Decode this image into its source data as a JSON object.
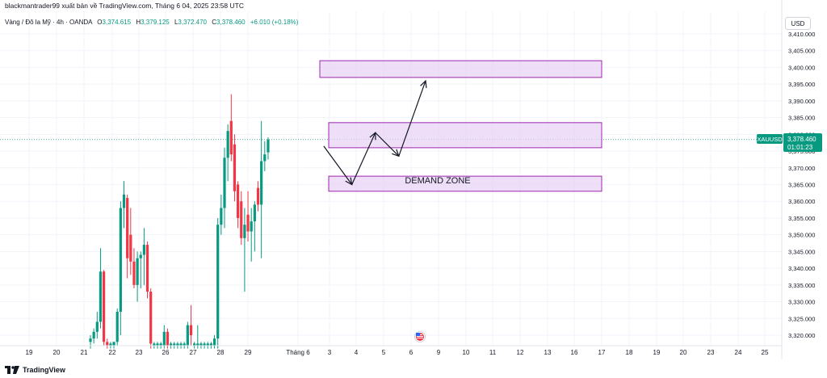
{
  "header": {
    "publisher": "blackmantrader99 xuất bản về TradingView.com, Tháng 6 04, 2025 23:58 UTC",
    "symbol_desc": "Vàng / Đô la Mỹ · 4h · OANDA",
    "o_label": "O",
    "o_value": "3,374.615",
    "h_label": "H",
    "h_value": "3,379.125",
    "l_label": "L",
    "l_value": "3,372.470",
    "c_label": "C",
    "c_value": "3,378.460",
    "change": "+6.010 (+0.18%)"
  },
  "price_axis": {
    "currency": "USD"
  },
  "price_tag": {
    "symbol": "XAUUSD",
    "price": "3,378.460",
    "countdown": "01:01:23"
  },
  "annotation": {
    "demand_zone": "DEMAND ZONE"
  },
  "footer": {
    "brand": "TradingView"
  },
  "colors": {
    "up": "#089981",
    "down": "#f23645",
    "zone_fill": "#e9d3f5",
    "zone_border": "#9c27b0",
    "price_tag": "#089981"
  },
  "chart_data": {
    "type": "candlestick",
    "x_tick_labels": [
      "19",
      "20",
      "21",
      "22",
      "23",
      "26",
      "27",
      "28",
      "29",
      "Tháng 6",
      "3",
      "4",
      "5",
      "6",
      "9",
      "10",
      "11",
      "12",
      "13",
      "16",
      "17",
      "18",
      "19",
      "20",
      "23",
      "24",
      "25"
    ],
    "y_tick_labels": [
      "3,410.000",
      "3,405.000",
      "3,400.000",
      "3,395.000",
      "3,390.000",
      "3,385.000",
      "3,380.000",
      "3,375.000",
      "3,370.000",
      "3,365.000",
      "3,360.000",
      "3,355.000",
      "3,350.000",
      "3,345.000",
      "3,340.000",
      "3,335.000",
      "3,330.000",
      "3,325.000",
      "3,320.000"
    ],
    "ylim": [
      3317,
      3411
    ],
    "last_price": 3378.46,
    "zones": [
      {
        "from": 3397,
        "to": 3402
      },
      {
        "from": 3376,
        "to": 3383.5
      },
      {
        "from": 3363,
        "to": 3367.5
      }
    ],
    "arrow_path_prices": [
      {
        "slot": 69.6,
        "price": 3376.5
      },
      {
        "slot": 78,
        "price": 3365
      },
      {
        "slot": 85,
        "price": 3380.5
      },
      {
        "slot": 92,
        "price": 3373.5
      },
      {
        "slot": 100,
        "price": 3396
      }
    ],
    "candles": [
      {
        "o": 3318.0,
        "h": 3320.0,
        "l": 3316.0,
        "c": 3319.0
      },
      {
        "o": 3319.0,
        "h": 3322.0,
        "l": 3317.5,
        "c": 3321.0
      },
      {
        "o": 3321.0,
        "h": 3327.0,
        "l": 3319.0,
        "c": 3324.0
      },
      {
        "o": 3324.0,
        "h": 3346.0,
        "l": 3322.0,
        "c": 3339.0
      },
      {
        "o": 3339.0,
        "h": 3339.5,
        "l": 3317.0,
        "c": 3318.0
      },
      {
        "o": 3318.0,
        "h": 3319.0,
        "l": 3316.0,
        "c": 3317.0
      },
      {
        "o": 3317.0,
        "h": 3318.0,
        "l": 3316.0,
        "c": 3317.5
      },
      {
        "o": 3317.0,
        "h": 3318.0,
        "l": 3316.0,
        "c": 3318.0
      },
      {
        "o": 3318.0,
        "h": 3328.0,
        "l": 3317.0,
        "c": 3327.0
      },
      {
        "o": 3327.0,
        "h": 3360.0,
        "l": 3320.0,
        "c": 3358.0
      },
      {
        "o": 3358.0,
        "h": 3366.0,
        "l": 3352.0,
        "c": 3362.0
      },
      {
        "o": 3361.0,
        "h": 3362.0,
        "l": 3337.0,
        "c": 3343.0
      },
      {
        "o": 3350.0,
        "h": 3358.0,
        "l": 3338.0,
        "c": 3342.0
      },
      {
        "o": 3342.0,
        "h": 3346.0,
        "l": 3334.0,
        "c": 3335.0
      },
      {
        "o": 3335.0,
        "h": 3345.0,
        "l": 3330.0,
        "c": 3343.0
      },
      {
        "o": 3343.0,
        "h": 3345.0,
        "l": 3334.0,
        "c": 3344.0
      },
      {
        "o": 3344.0,
        "h": 3352.0,
        "l": 3335.0,
        "c": 3347.0
      },
      {
        "o": 3347.0,
        "h": 3348.0,
        "l": 3331.0,
        "c": 3333.0
      },
      {
        "o": 3333.0,
        "h": 3334.0,
        "l": 3316.0,
        "c": 3317.5
      },
      {
        "o": 3317.0,
        "h": 3318.0,
        "l": 3316.0,
        "c": 3317.5
      },
      {
        "o": 3317.0,
        "h": 3318.0,
        "l": 3316.0,
        "c": 3317.5
      },
      {
        "o": 3317.0,
        "h": 3318.0,
        "l": 3316.0,
        "c": 3317.5
      },
      {
        "o": 3317.0,
        "h": 3323.0,
        "l": 3316.0,
        "c": 3321.0
      },
      {
        "o": 3321.0,
        "h": 3322.0,
        "l": 3316.0,
        "c": 3317.0
      },
      {
        "o": 3317.0,
        "h": 3318.0,
        "l": 3316.0,
        "c": 3317.5
      },
      {
        "o": 3317.0,
        "h": 3318.0,
        "l": 3316.0,
        "c": 3317.5
      },
      {
        "o": 3317.0,
        "h": 3318.0,
        "l": 3316.0,
        "c": 3317.5
      },
      {
        "o": 3317.0,
        "h": 3318.0,
        "l": 3316.0,
        "c": 3317.5
      },
      {
        "o": 3317.0,
        "h": 3318.0,
        "l": 3316.0,
        "c": 3317.5
      },
      {
        "o": 3317.0,
        "h": 3324.0,
        "l": 3316.0,
        "c": 3323.0
      },
      {
        "o": 3323.0,
        "h": 3329.0,
        "l": 3317.0,
        "c": 3320.0
      },
      {
        "o": 3317.0,
        "h": 3318.0,
        "l": 3316.0,
        "c": 3317.5
      },
      {
        "o": 3317.0,
        "h": 3323.0,
        "l": 3316.0,
        "c": 3317.5
      },
      {
        "o": 3317.0,
        "h": 3318.0,
        "l": 3316.0,
        "c": 3317.5
      },
      {
        "o": 3317.0,
        "h": 3318.0,
        "l": 3316.0,
        "c": 3317.5
      },
      {
        "o": 3317.0,
        "h": 3318.0,
        "l": 3316.0,
        "c": 3317.5
      },
      {
        "o": 3317.0,
        "h": 3318.0,
        "l": 3316.0,
        "c": 3317.5
      },
      {
        "o": 3317.0,
        "h": 3320.0,
        "l": 3316.0,
        "c": 3319.0
      },
      {
        "o": 3319.0,
        "h": 3355.0,
        "l": 3316.0,
        "c": 3353.0
      },
      {
        "o": 3353.0,
        "h": 3362.0,
        "l": 3350.0,
        "c": 3358.0
      },
      {
        "o": 3358.0,
        "h": 3376.0,
        "l": 3352.0,
        "c": 3373.0
      },
      {
        "o": 3373.0,
        "h": 3383.0,
        "l": 3366.0,
        "c": 3381.0
      },
      {
        "o": 3384.0,
        "h": 3392.0,
        "l": 3372.0,
        "c": 3374.0
      },
      {
        "o": 3377.0,
        "h": 3380.0,
        "l": 3360.0,
        "c": 3363.0
      },
      {
        "o": 3365.0,
        "h": 3366.0,
        "l": 3352.0,
        "c": 3355.0
      },
      {
        "o": 3360.0,
        "h": 3363.0,
        "l": 3347.0,
        "c": 3349.0
      },
      {
        "o": 3349.0,
        "h": 3358.0,
        "l": 3333.0,
        "c": 3353.0
      },
      {
        "o": 3356.0,
        "h": 3363.0,
        "l": 3348.0,
        "c": 3351.0
      },
      {
        "o": 3351.0,
        "h": 3358.0,
        "l": 3342.0,
        "c": 3354.0
      },
      {
        "o": 3354.0,
        "h": 3360.0,
        "l": 3345.0,
        "c": 3359.0
      },
      {
        "o": 3364.0,
        "h": 3366.0,
        "l": 3357.0,
        "c": 3359.0
      },
      {
        "o": 3359.0,
        "h": 3384.0,
        "l": 3343.0,
        "c": 3372.0
      },
      {
        "o": 3372.0,
        "h": 3378.0,
        "l": 3369.0,
        "c": 3374.0
      },
      {
        "o": 3374.615,
        "h": 3379.125,
        "l": 3372.47,
        "c": 3378.46
      }
    ]
  }
}
